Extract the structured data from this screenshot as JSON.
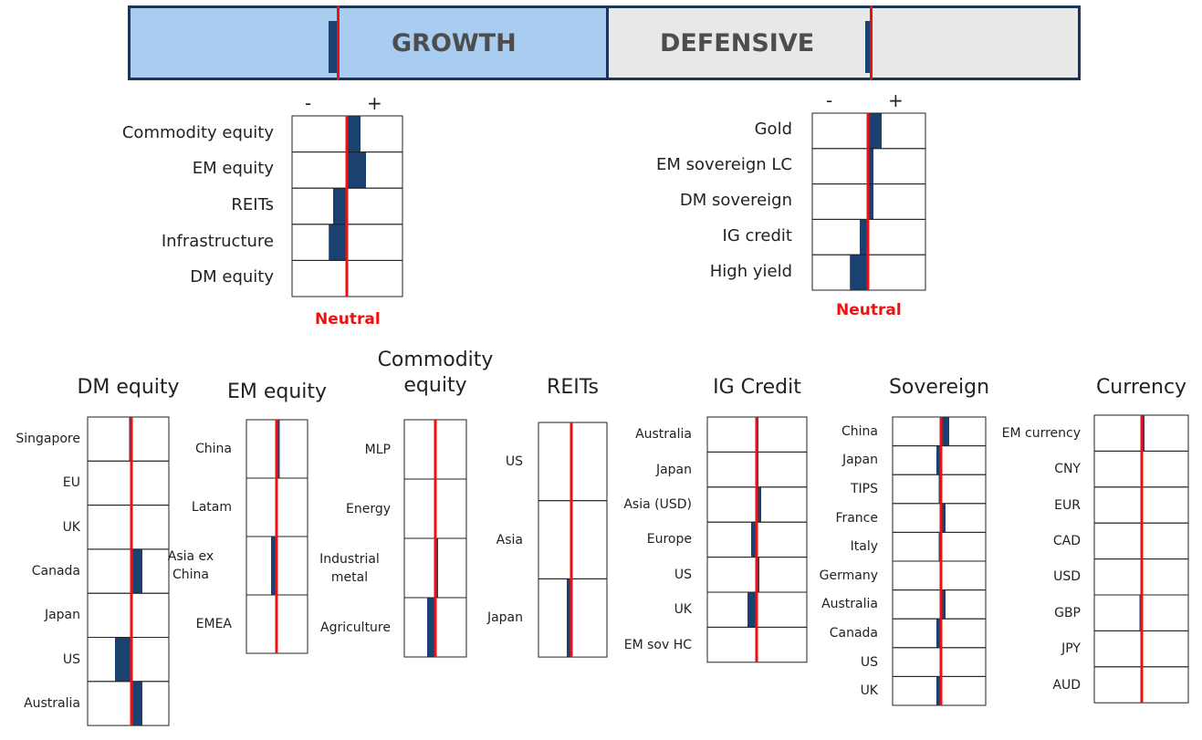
{
  "colors": {
    "bar": "#1a4170",
    "neutral_line": "#ee1111",
    "growth_fill": "#a8cdf0",
    "defensive_fill": "#e8e8e8",
    "border": "#1a3555",
    "cell_border": "#222222"
  },
  "header": {
    "growth": {
      "label": "GROWTH",
      "signal": -0.35
    },
    "defensive": {
      "label": "DEFENSIVE",
      "signal": -0.2
    }
  },
  "chart_data": [
    {
      "type": "bar",
      "panel": "growth",
      "signs": {
        "minus": "-",
        "plus": "+"
      },
      "neutral_label": "Neutral",
      "xlim": [
        -1,
        1
      ],
      "categories": [
        "Commodity equity",
        "EM equity",
        "REITs",
        "Infrastructure",
        "DM equity"
      ],
      "values": [
        0.25,
        0.35,
        -0.25,
        -0.33,
        0.0
      ]
    },
    {
      "type": "bar",
      "panel": "defensive",
      "signs": {
        "minus": "-",
        "plus": "+"
      },
      "neutral_label": "Neutral",
      "xlim": [
        -1,
        1
      ],
      "categories": [
        "Gold",
        "EM sovereign LC",
        "DM sovereign",
        "IG credit",
        "High yield"
      ],
      "values": [
        0.25,
        0.1,
        0.1,
        -0.15,
        -0.33
      ]
    },
    {
      "type": "bar",
      "title": "DM equity",
      "xlim": [
        -1,
        1
      ],
      "categories": [
        "Singapore",
        "EU",
        "UK",
        "Canada",
        "Japan",
        "US",
        "Australia"
      ],
      "values": [
        -0.05,
        0.03,
        0.03,
        0.24,
        0.0,
        -0.36,
        0.24
      ]
    },
    {
      "type": "bar",
      "title": "EM equity",
      "xlim": [
        -1,
        1
      ],
      "categories": [
        "China",
        "Latam",
        "Asia ex China",
        "EMEA"
      ],
      "values": [
        0.07,
        0.0,
        -0.12,
        0.0
      ]
    },
    {
      "type": "bar",
      "title": "Commodity equity",
      "xlim": [
        -1,
        1
      ],
      "categories": [
        "MLP",
        "Energy",
        "Industrial metal",
        "Agriculture"
      ],
      "values": [
        0.0,
        0.0,
        0.06,
        -0.18
      ]
    },
    {
      "type": "bar",
      "title": "REITs",
      "xlim": [
        -1,
        1
      ],
      "categories": [
        "US",
        "Asia",
        "Japan"
      ],
      "values": [
        0.0,
        0.0,
        -0.1
      ]
    },
    {
      "type": "bar",
      "title": "IG Credit",
      "xlim": [
        -1,
        1
      ],
      "categories": [
        "Australia",
        "Japan",
        "Asia (USD)",
        "Europe",
        "US",
        "UK",
        "EM sov HC"
      ],
      "values": [
        0.04,
        0.04,
        0.1,
        -0.12,
        0.06,
        -0.2,
        0.0
      ]
    },
    {
      "type": "bar",
      "title": "Sovereign",
      "xlim": [
        -1,
        1
      ],
      "categories": [
        "China",
        "Japan",
        "TIPS",
        "France",
        "Italy",
        "Germany",
        "Australia",
        "Canada",
        "US",
        "UK"
      ],
      "values": [
        0.18,
        -0.1,
        -0.05,
        0.1,
        -0.05,
        0.03,
        0.1,
        -0.1,
        0.0,
        -0.1
      ]
    },
    {
      "type": "bar",
      "title": "Currency",
      "xlim": [
        -1,
        1
      ],
      "categories": [
        "EM currency",
        "CNY",
        "EUR",
        "CAD",
        "USD",
        "GBP",
        "JPY",
        "AUD"
      ],
      "values": [
        0.06,
        0.0,
        0.0,
        0.0,
        0.0,
        -0.05,
        0.0,
        0.0
      ]
    }
  ]
}
